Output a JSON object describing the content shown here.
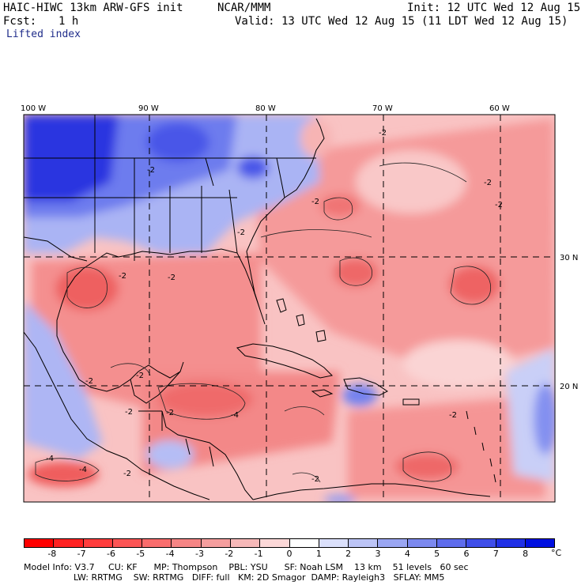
{
  "header": {
    "model": "HAIC-HIWC 13km ARW-GFS init",
    "org": "NCAR/MMM",
    "init": "Init: 12 UTC Wed 12 Aug 15",
    "fcst_label": "Fcst:",
    "fcst_value": "1 h",
    "valid": "Valid: 13 UTC Wed 12 Aug 15 (11 LDT Wed 12 Aug 15)",
    "field": "Lifted index"
  },
  "map": {
    "lon_labels": [
      "100 W",
      "90 W",
      "80 W",
      "70 W",
      "60 W"
    ],
    "lat_labels": [
      "30 N",
      "20 N"
    ],
    "contour_labels": [
      "-2",
      "-2",
      "-2",
      "-2",
      "-2",
      "-2",
      "-2",
      "-2",
      "-2",
      "-2",
      "-2",
      "-2",
      "-2",
      "-2",
      "-4",
      "-4",
      "-4",
      "-2"
    ],
    "colors": {
      "strong_blue": "#1212d8",
      "mid_blue": "#5d6df0",
      "light_blue": "#aeb8f5",
      "pale_red": "#f8c9c9",
      "light_red": "#f59a9a",
      "mid_red": "#ef6a6a",
      "strong_red": "#e83a3a"
    }
  },
  "colorbar": {
    "labels": [
      "-8",
      "-7",
      "-6",
      "-5",
      "-4",
      "-3",
      "-2",
      "-1",
      "0",
      "1",
      "2",
      "3",
      "4",
      "5",
      "6",
      "7",
      "8"
    ],
    "unit": "°C",
    "colors": [
      "#ff0000",
      "#ff2222",
      "#ff3d3d",
      "#fc5555",
      "#f96d6d",
      "#f68585",
      "#f59e9e",
      "#f7b9b9",
      "#fcd8d8",
      "#ffffff",
      "#dbe0fb",
      "#bcc4f6",
      "#9aa6f2",
      "#7c89ef",
      "#5e6cec",
      "#3f4ee9",
      "#2030e6",
      "#0010e0"
    ]
  },
  "model_info": {
    "line1": "Model Info: V3.7     CU: KF      MP: Thompson    PBL: YSU      SF: Noah LSM    13 km    51 levels   60 sec",
    "line2": "                  LW: RRTMG    SW: RRTMG   DIFF: full   KM: 2D Smagor  DAMP: Rayleigh3   SFLAY: MM5"
  }
}
